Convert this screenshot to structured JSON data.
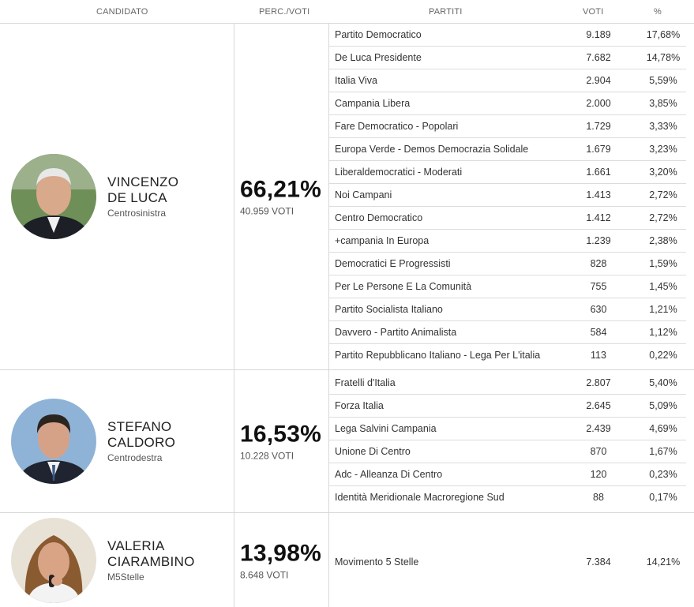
{
  "headers": {
    "candidato": "CANDIDATO",
    "perc_voti": "PERC./VOTI",
    "partiti": "PARTITI",
    "voti": "VOTI",
    "pct": "%"
  },
  "candidates": [
    {
      "name_line1": "VINCENZO",
      "name_line2": "DE LUCA",
      "coalition": "Centrosinistra",
      "percentage": "66,21%",
      "votes": "40.959 VOTI",
      "parties": [
        {
          "name": "Partito Democratico",
          "votes": "9.189",
          "pct": "17,68%"
        },
        {
          "name": "De Luca Presidente",
          "votes": "7.682",
          "pct": "14,78%"
        },
        {
          "name": "Italia Viva",
          "votes": "2.904",
          "pct": "5,59%"
        },
        {
          "name": "Campania Libera",
          "votes": "2.000",
          "pct": "3,85%"
        },
        {
          "name": "Fare Democratico - Popolari",
          "votes": "1.729",
          "pct": "3,33%"
        },
        {
          "name": "Europa Verde - Demos Democrazia Solidale",
          "votes": "1.679",
          "pct": "3,23%"
        },
        {
          "name": "Liberaldemocratici - Moderati",
          "votes": "1.661",
          "pct": "3,20%"
        },
        {
          "name": "Noi Campani",
          "votes": "1.413",
          "pct": "2,72%"
        },
        {
          "name": "Centro Democratico",
          "votes": "1.412",
          "pct": "2,72%"
        },
        {
          "name": "+campania In Europa",
          "votes": "1.239",
          "pct": "2,38%"
        },
        {
          "name": "Democratici E Progressisti",
          "votes": "828",
          "pct": "1,59%"
        },
        {
          "name": "Per Le Persone E La Comunità",
          "votes": "755",
          "pct": "1,45%"
        },
        {
          "name": "Partito Socialista Italiano",
          "votes": "630",
          "pct": "1,21%"
        },
        {
          "name": "Davvero - Partito Animalista",
          "votes": "584",
          "pct": "1,12%"
        },
        {
          "name": "Partito Repubblicano Italiano - Lega Per L'italia",
          "votes": "113",
          "pct": "0,22%"
        }
      ]
    },
    {
      "name_line1": "STEFANO",
      "name_line2": "CALDORO",
      "coalition": "Centrodestra",
      "percentage": "16,53%",
      "votes": "10.228 VOTI",
      "parties": [
        {
          "name": "Fratelli d'Italia",
          "votes": "2.807",
          "pct": "5,40%"
        },
        {
          "name": "Forza Italia",
          "votes": "2.645",
          "pct": "5,09%"
        },
        {
          "name": "Lega Salvini Campania",
          "votes": "2.439",
          "pct": "4,69%"
        },
        {
          "name": "Unione Di Centro",
          "votes": "870",
          "pct": "1,67%"
        },
        {
          "name": "Adc - Alleanza Di Centro",
          "votes": "120",
          "pct": "0,23%"
        },
        {
          "name": "Identità Meridionale Macroregione Sud",
          "votes": "88",
          "pct": "0,17%"
        }
      ]
    },
    {
      "name_line1": "VALERIA",
      "name_line2": "CIARAMBINO",
      "coalition": "M5Stelle",
      "percentage": "13,98%",
      "votes": "8.648 VOTI",
      "parties": [
        {
          "name": "Movimento 5 Stelle",
          "votes": "7.384",
          "pct": "14,21%"
        }
      ]
    }
  ]
}
